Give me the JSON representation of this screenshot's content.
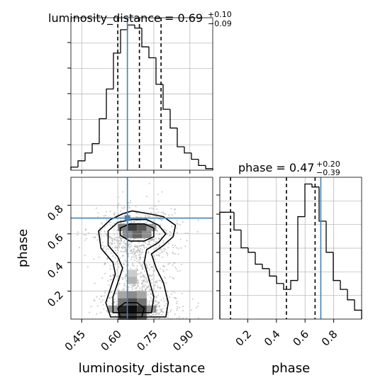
{
  "chart_data": {
    "type": "corner",
    "truth_color": "#4682b4",
    "line_color": "#000000",
    "grid": true,
    "params": [
      {
        "name": "luminosity_distance",
        "label": "luminosity_distance",
        "range": [
          0.405,
          0.995
        ],
        "ticks": [
          0.45,
          0.6,
          0.75,
          0.9
        ],
        "tick_labels": [
          "0.45",
          "0.60",
          "0.75",
          "0.90"
        ],
        "truth": 0.64,
        "quantiles": [
          0.6,
          0.69,
          0.78
        ],
        "title": {
          "prefix": "luminosity_distance = 0.69",
          "plus": "+0.10",
          "minus": "−0.09"
        },
        "hist_edges": [
          0.405,
          0.4345,
          0.464,
          0.4935,
          0.523,
          0.5525,
          0.582,
          0.6115,
          0.641,
          0.6705,
          0.7,
          0.7295,
          0.759,
          0.7885,
          0.818,
          0.8475,
          0.877,
          0.9065,
          0.936,
          0.9655,
          0.995
        ],
        "hist_counts": [
          2,
          6,
          11,
          17,
          33,
          52,
          75,
          90,
          93,
          91,
          79,
          72,
          55,
          39,
          27,
          15,
          11,
          7,
          3,
          1
        ]
      },
      {
        "name": "phase",
        "label": "phase",
        "range": [
          0.005,
          0.995
        ],
        "ticks": [
          0.2,
          0.4,
          0.6,
          0.8
        ],
        "tick_labels": [
          "0.2",
          "0.4",
          "0.6",
          "0.8"
        ],
        "truth": 0.71,
        "quantiles": [
          0.08,
          0.47,
          0.67
        ],
        "title": {
          "prefix": "phase = 0.47",
          "plus": "+0.20",
          "minus": "−0.39"
        },
        "hist_edges": [
          0.005,
          0.0545,
          0.104,
          0.1535,
          0.203,
          0.2525,
          0.302,
          0.3515,
          0.401,
          0.4505,
          0.5,
          0.5495,
          0.599,
          0.6485,
          0.698,
          0.7475,
          0.797,
          0.8465,
          0.896,
          0.9455,
          0.995
        ],
        "hist_counts": [
          72,
          72,
          60,
          48,
          45,
          37,
          34,
          29,
          24,
          20,
          26,
          69,
          91,
          89,
          66,
          45,
          26,
          20,
          13,
          6
        ]
      }
    ],
    "joint": {
      "x_param": "luminosity_distance",
      "y_param": "phase",
      "truth_point": [
        0.64,
        0.71
      ],
      "mean_x": [
        0.69,
        0.68,
        0.68
      ],
      "mean_y": [
        0.05,
        0.25,
        0.59
      ],
      "contour_levels": [
        "outer",
        "mid",
        "inner"
      ]
    }
  }
}
